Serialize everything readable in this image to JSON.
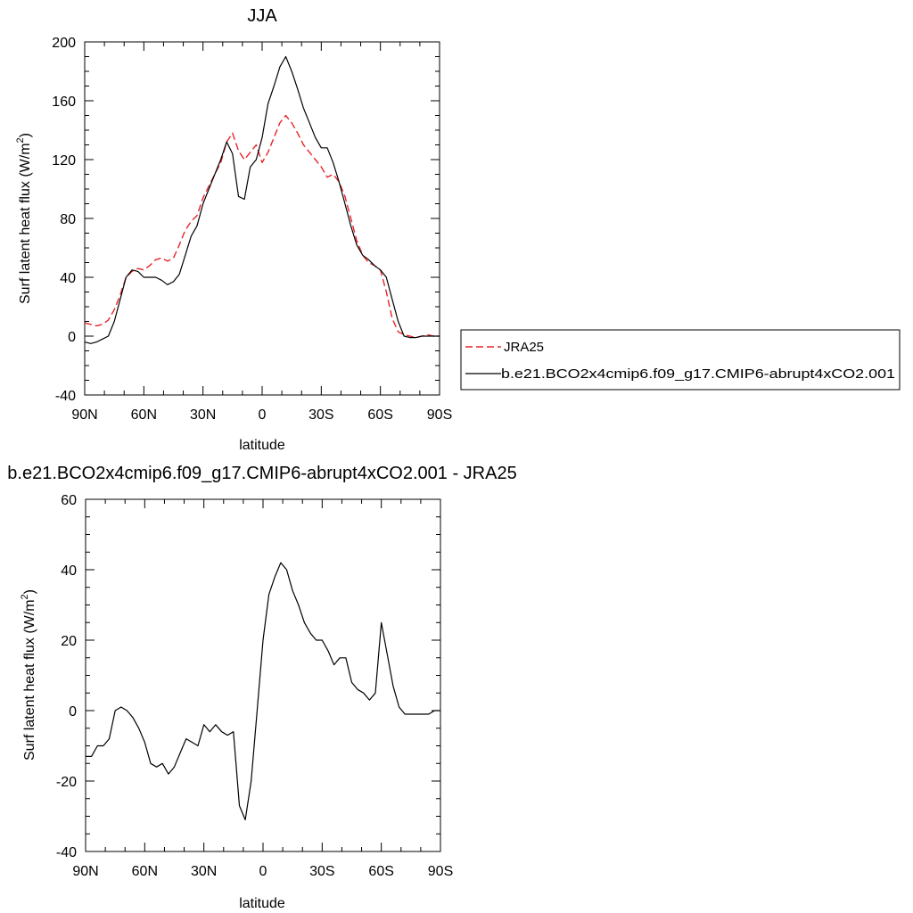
{
  "chart_data": [
    {
      "type": "line",
      "title": "JJA",
      "xlabel": "latitude",
      "ylabel": "Surf latent heat flux (W/m",
      "ylabel_superscript": "2",
      "ylabel_suffix": ")",
      "xlim": [
        90,
        -90
      ],
      "ylim": [
        -40,
        200
      ],
      "xticks": [
        90,
        60,
        30,
        0,
        -30,
        -60,
        -90
      ],
      "xtick_labels": [
        "90N",
        "60N",
        "30N",
        "0",
        "30S",
        "60S",
        "90S"
      ],
      "yticks": [
        -40,
        0,
        40,
        80,
        120,
        160,
        200
      ],
      "ytick_labels": [
        "-40",
        "0",
        "40",
        "80",
        "120",
        "160",
        "200"
      ],
      "legend_position": "right",
      "series": [
        {
          "name": "JRA25",
          "style": "dashed",
          "color": "#e8242a",
          "x": [
            90,
            87,
            84,
            81,
            78,
            75,
            72,
            69,
            66,
            63,
            60,
            57,
            54,
            51,
            48,
            45,
            42,
            39,
            36,
            33,
            30,
            27,
            24,
            21,
            18,
            15,
            12,
            9,
            6,
            3,
            0,
            -3,
            -6,
            -9,
            -12,
            -15,
            -18,
            -21,
            -24,
            -27,
            -30,
            -33,
            -36,
            -39,
            -42,
            -45,
            -48,
            -51,
            -54,
            -57,
            -60,
            -63,
            -66,
            -69,
            -72,
            -75,
            -78,
            -81,
            -84,
            -87,
            -90
          ],
          "y": [
            9,
            8,
            7,
            8,
            11,
            18,
            28,
            40,
            44,
            46,
            45,
            48,
            52,
            53,
            51,
            53,
            62,
            72,
            78,
            82,
            94,
            102,
            110,
            118,
            132,
            138,
            126,
            120,
            125,
            130,
            118,
            125,
            135,
            145,
            150,
            145,
            138,
            130,
            125,
            120,
            115,
            108,
            110,
            105,
            95,
            80,
            65,
            55,
            50,
            48,
            45,
            30,
            12,
            3,
            1,
            0,
            -1,
            0,
            1,
            0,
            0
          ]
        },
        {
          "name": "b.e21.BCO2x4cmip6.f09_g17.CMIP6-abrupt4xCO2.001",
          "style": "solid",
          "color": "#000000",
          "x": [
            90,
            87,
            84,
            81,
            78,
            75,
            72,
            69,
            66,
            63,
            60,
            57,
            54,
            51,
            48,
            45,
            42,
            39,
            36,
            33,
            30,
            27,
            24,
            21,
            18,
            15,
            12,
            9,
            6,
            3,
            0,
            -3,
            -6,
            -9,
            -12,
            -15,
            -18,
            -21,
            -24,
            -27,
            -30,
            -33,
            -36,
            -39,
            -42,
            -45,
            -48,
            -51,
            -54,
            -57,
            -60,
            -63,
            -66,
            -69,
            -72,
            -75,
            -78,
            -81,
            -84,
            -87,
            -90
          ],
          "y": [
            -4,
            -5,
            -4,
            -2,
            0,
            10,
            25,
            40,
            45,
            44,
            40,
            40,
            40,
            38,
            35,
            37,
            42,
            55,
            68,
            75,
            90,
            100,
            110,
            120,
            132,
            124,
            95,
            93,
            115,
            120,
            135,
            158,
            170,
            183,
            190,
            180,
            168,
            155,
            145,
            135,
            128,
            128,
            118,
            105,
            90,
            75,
            62,
            55,
            52,
            48,
            45,
            40,
            25,
            10,
            0,
            -1,
            -1,
            0,
            0,
            0,
            0
          ]
        }
      ]
    },
    {
      "type": "line",
      "title": "b.e21.BCO2x4cmip6.f09_g17.CMIP6-abrupt4xCO2.001 - JRA25",
      "xlabel": "latitude",
      "ylabel": "Surf latent heat flux (W/m",
      "ylabel_superscript": "2",
      "ylabel_suffix": ")",
      "xlim": [
        90,
        -90
      ],
      "ylim": [
        -40,
        60
      ],
      "xticks": [
        90,
        60,
        30,
        0,
        -30,
        -60,
        -90
      ],
      "xtick_labels": [
        "90N",
        "60N",
        "30N",
        "0",
        "30S",
        "60S",
        "90S"
      ],
      "yticks": [
        -40,
        -20,
        0,
        20,
        40,
        60
      ],
      "ytick_labels": [
        "-40",
        "-20",
        "0",
        "20",
        "40",
        "60"
      ],
      "series": [
        {
          "style": "solid",
          "color": "#000000",
          "x": [
            90,
            87,
            84,
            81,
            78,
            75,
            72,
            69,
            66,
            63,
            60,
            57,
            54,
            51,
            48,
            45,
            42,
            39,
            36,
            33,
            30,
            27,
            24,
            21,
            18,
            15,
            12,
            9,
            6,
            3,
            0,
            -3,
            -6,
            -9,
            -12,
            -15,
            -18,
            -21,
            -24,
            -27,
            -30,
            -33,
            -36,
            -39,
            -42,
            -45,
            -48,
            -51,
            -54,
            -57,
            -60,
            -63,
            -66,
            -69,
            -72,
            -75,
            -78,
            -81,
            -84,
            -87,
            -90
          ],
          "y": [
            -13,
            -13,
            -10,
            -10,
            -8,
            0,
            1,
            0,
            -2,
            -5,
            -9,
            -15,
            -16,
            -15,
            -18,
            -16,
            -12,
            -8,
            -9,
            -10,
            -4,
            -6,
            -4,
            -6,
            -7,
            -6,
            -27,
            -31,
            -20,
            0,
            20,
            33,
            38,
            42,
            40,
            34,
            30,
            25,
            22,
            20,
            20,
            17,
            13,
            15,
            15,
            8,
            6,
            5,
            3,
            5,
            25,
            16,
            7,
            1,
            -1,
            -1,
            -1,
            -1,
            -1,
            0,
            0
          ]
        }
      ]
    }
  ]
}
